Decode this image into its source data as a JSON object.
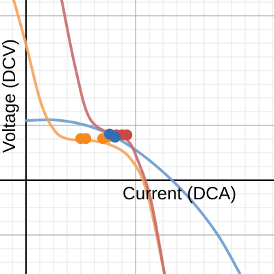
{
  "chart_data": {
    "type": "line",
    "xlabel": "Current (DCA)",
    "ylabel": "Voltage (DCV)",
    "xlim": [
      -0.95,
      9.05
    ],
    "ylim": [
      -3.425,
      6.575
    ],
    "grid_x": [
      -0.5,
      0.5,
      1,
      1.5,
      2,
      2.5,
      3,
      3.5,
      4,
      4.5,
      5,
      5.5,
      6,
      6.5,
      7,
      7.5,
      8,
      8.5,
      9
    ],
    "grid_y": [
      -3,
      -2.5,
      -2,
      -1.5,
      -1,
      -0.5,
      0.5,
      1,
      1.5,
      2,
      2.5,
      3,
      3.5,
      4,
      4.5,
      5,
      5.5,
      6,
      6.5
    ],
    "major_grid_x": [
      4
    ],
    "major_grid_y": [
      -2,
      2,
      6
    ],
    "series": [
      {
        "color": "#6b9bd1",
        "mode": "line",
        "x": [
          0,
          1,
          2,
          3,
          4,
          5,
          6,
          7,
          7.8
        ],
        "values": [
          2.17,
          2.2,
          2.05,
          1.7,
          1.1,
          0.3,
          -0.7,
          -2.0,
          -3.4
        ]
      },
      {
        "color": "#f5a35a",
        "mode": "line",
        "x": [
          -0.45,
          0,
          0.55,
          1.05,
          1.55,
          2.3,
          3.05,
          3.8,
          4.4,
          5.05
        ],
        "values": [
          6.575,
          4.95,
          2.8,
          1.8,
          1.5,
          1.45,
          1.3,
          0.8,
          -0.4,
          -3.4
        ]
      },
      {
        "color": "#c96c6c",
        "mode": "line",
        "x": [
          1.3,
          1.8,
          2.3,
          3.05,
          3.7,
          4.05,
          4.55,
          5.05
        ],
        "values": [
          6.575,
          4.1,
          2.3,
          1.7,
          1.45,
          0.8,
          -0.7,
          -3.4
        ]
      },
      {
        "color": "#f5891f",
        "mode": "markers",
        "x": [
          2.0,
          2.18,
          2.8,
          3.0
        ],
        "values": [
          1.52,
          1.52,
          1.52,
          1.58
        ]
      },
      {
        "color": "#c94848",
        "mode": "markers",
        "x": [
          3.3,
          3.5,
          3.68
        ],
        "values": [
          1.65,
          1.65,
          1.65
        ]
      },
      {
        "color": "#2f6fba",
        "mode": "markers",
        "x": [
          3.05,
          3.25
        ],
        "values": [
          1.68,
          1.57
        ]
      }
    ]
  }
}
